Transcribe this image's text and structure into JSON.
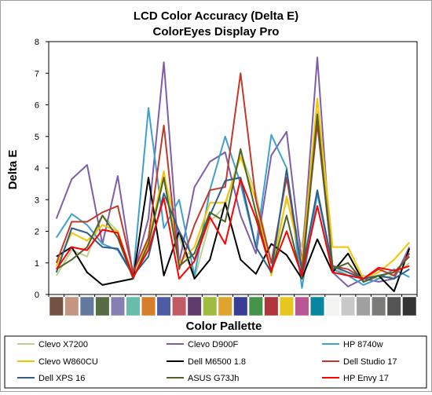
{
  "chart_data": {
    "type": "line",
    "title": "LCD Color Accuracy (Delta E)",
    "subtitle": "ColorEyes Display Pro",
    "xlabel": "Color Pallette",
    "ylabel": "Delta E",
    "ylim": [
      0,
      8
    ],
    "yticks": [
      "0",
      "1",
      "2",
      "3",
      "4",
      "5",
      "6",
      "7",
      "8"
    ],
    "grid": false,
    "legend_position": "bottom",
    "swatch_colors": [
      "#735244",
      "#c29682",
      "#627a9d",
      "#576c43",
      "#8580b1",
      "#67bdaa",
      "#d67e2c",
      "#505ba6",
      "#c15a63",
      "#5e3c6c",
      "#9dbc40",
      "#e0a32e",
      "#383d96",
      "#469449",
      "#af363c",
      "#e7c71f",
      "#bb5695",
      "#0885a1",
      "#f3f3f2",
      "#c8c8c8",
      "#a0a0a0",
      "#7a7a79",
      "#555555",
      "#343434"
    ],
    "series": [
      {
        "name": "Clevo X7200",
        "color": "#b7d38f",
        "values": [
          0.6,
          1.4,
          1.2,
          2.5,
          2.0,
          0.6,
          1.5,
          3.8,
          1.8,
          0.5,
          2.3,
          2.8,
          4.5,
          3.2,
          1.0,
          3.0,
          1.5,
          5.8,
          0.9,
          0.6,
          0.6,
          0.5,
          0.6,
          1.0
        ]
      },
      {
        "name": "Clevo D900F",
        "color": "#7e5ea8",
        "values": [
          2.4,
          3.65,
          4.1,
          1.6,
          3.75,
          0.6,
          2.4,
          7.35,
          1.0,
          3.4,
          4.2,
          4.5,
          2.5,
          1.3,
          4.4,
          5.15,
          1.0,
          7.5,
          0.7,
          0.25,
          0.5,
          0.4,
          0.5,
          1.5
        ]
      },
      {
        "name": "HP 8740w",
        "color": "#3fa0cf",
        "values": [
          1.8,
          2.55,
          2.2,
          1.6,
          1.4,
          0.6,
          5.9,
          2.1,
          3.0,
          0.6,
          3.3,
          5.0,
          3.5,
          1.5,
          5.05,
          4.0,
          0.2,
          3.2,
          0.8,
          0.6,
          0.3,
          0.5,
          0.8,
          0.55
        ]
      },
      {
        "name": "Clevo W860CU",
        "color": "#f5c400",
        "values": [
          0.9,
          1.95,
          1.7,
          2.2,
          2.0,
          0.5,
          1.7,
          3.9,
          1.0,
          1.5,
          2.9,
          2.9,
          4.35,
          3.0,
          0.6,
          3.1,
          1.0,
          6.2,
          1.5,
          1.5,
          0.5,
          0.7,
          1.1,
          1.65
        ]
      },
      {
        "name": "Dell M6500 1.8",
        "color": "#000000",
        "values": [
          1.2,
          1.5,
          0.7,
          0.3,
          0.4,
          0.5,
          3.7,
          0.6,
          2.0,
          0.5,
          1.1,
          2.9,
          1.1,
          0.65,
          1.6,
          1.25,
          0.5,
          1.75,
          0.7,
          1.3,
          0.4,
          0.6,
          0.1,
          1.45
        ]
      },
      {
        "name": "Dell Studio 17",
        "color": "#c0392b",
        "values": [
          1.0,
          2.3,
          2.3,
          2.6,
          2.8,
          0.7,
          1.8,
          5.35,
          0.8,
          2.2,
          3.3,
          3.4,
          7.0,
          3.0,
          1.0,
          3.7,
          0.8,
          5.4,
          0.9,
          0.8,
          0.5,
          0.8,
          0.6,
          1.3
        ]
      },
      {
        "name": "Dell XPS 16",
        "color": "#2e5e8c",
        "values": [
          0.7,
          2.1,
          1.95,
          1.5,
          1.45,
          0.6,
          1.2,
          3.2,
          2.0,
          1.1,
          2.5,
          3.6,
          3.7,
          1.5,
          0.7,
          3.95,
          0.7,
          3.3,
          0.9,
          0.7,
          0.5,
          0.6,
          0.5,
          0.8
        ]
      },
      {
        "name": "ASUS G73Jh",
        "color": "#4f6228",
        "values": [
          0.8,
          1.1,
          1.5,
          2.5,
          1.8,
          0.5,
          1.6,
          3.7,
          0.9,
          1.3,
          2.6,
          2.3,
          4.6,
          2.6,
          0.7,
          2.5,
          0.5,
          5.7,
          0.8,
          1.0,
          0.4,
          0.6,
          0.7,
          1.2
        ]
      },
      {
        "name": "HP Envy 17",
        "color": "#ff0000",
        "values": [
          0.8,
          1.5,
          1.4,
          2.05,
          1.95,
          0.55,
          1.4,
          3.05,
          0.5,
          1.05,
          2.45,
          1.6,
          3.65,
          2.4,
          0.75,
          2.0,
          0.6,
          2.8,
          0.7,
          0.6,
          0.5,
          0.85,
          0.75,
          0.9
        ]
      }
    ]
  }
}
